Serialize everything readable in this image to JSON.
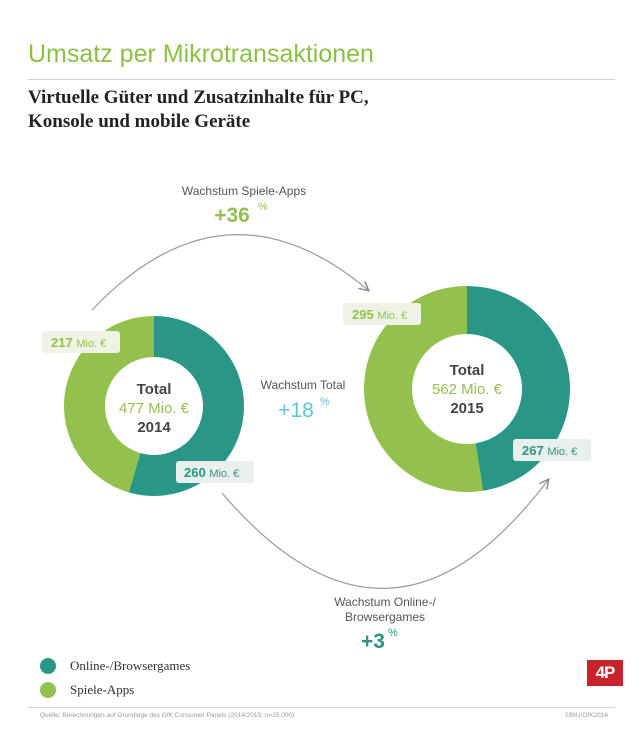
{
  "title": "Umsatz per Mikrotransaktionen",
  "subtitle_lines": [
    "Virtuelle Güter und Zusatzinhalte für PC,",
    "Konsole und mobile Geräte"
  ],
  "colors": {
    "online": "#2a9686",
    "apps": "#93c14d",
    "total_growth": "#5bc4d6",
    "title": "#8cbf45"
  },
  "chart_data": [
    {
      "type": "pie",
      "year": "2014",
      "total_label": "Total",
      "total_value": "477 Mio. €",
      "slices": [
        {
          "name": "Online-/Browsergames",
          "value": 260,
          "label": "260 Mio. €"
        },
        {
          "name": "Spiele-Apps",
          "value": 217,
          "label": "217 Mio. €"
        }
      ]
    },
    {
      "type": "pie",
      "year": "2015",
      "total_label": "Total",
      "total_value": "562 Mio. €",
      "slices": [
        {
          "name": "Online-/Browsergames",
          "value": 267,
          "label": "267 Mio. €"
        },
        {
          "name": "Spiele-Apps",
          "value": 295,
          "label": "295 Mio. €"
        }
      ]
    }
  ],
  "growth": {
    "apps": {
      "label": "Wachstum Spiele-Apps",
      "value": "+36",
      "unit": "%"
    },
    "total": {
      "label": "Wachstum Total",
      "value": "+18",
      "unit": "%"
    },
    "online": {
      "label_lines": [
        "Wachstum Online-/",
        "Browsergames"
      ],
      "value": "+3",
      "unit": "%"
    }
  },
  "legend": [
    {
      "label": "Online-/Browsergames",
      "color": "#2a9686"
    },
    {
      "label": "Spiele-Apps",
      "color": "#93c14d"
    }
  ],
  "source": "Quelle: Berechnungen auf Grundlage des GfK Consumer Panels (2014/2015; n=25.000)",
  "copyright": "©BIU/GfK2016",
  "logo": "4P"
}
